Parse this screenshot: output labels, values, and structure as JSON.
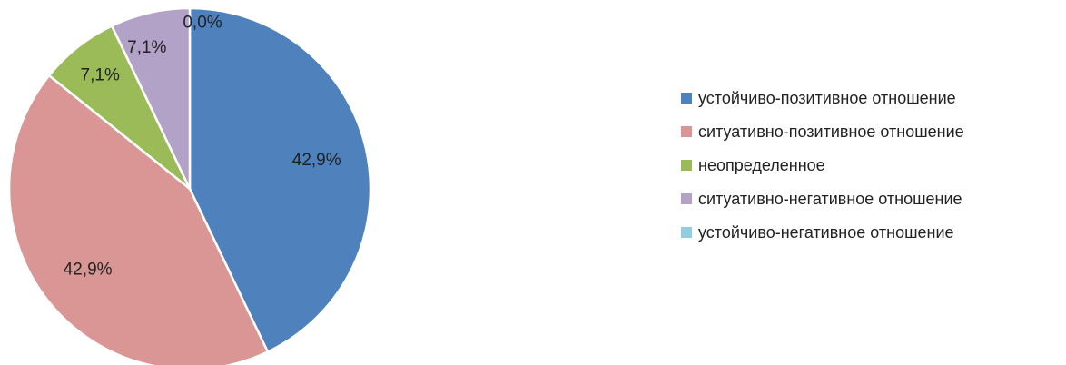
{
  "chart_data": {
    "type": "pie",
    "title": "",
    "legend_position": "right",
    "slices": [
      {
        "label": "устойчиво-позитивное отношение",
        "value": 42.9,
        "display": "42,9%",
        "color": "#4F81BD"
      },
      {
        "label": "ситуативно-позитивное отношение",
        "value": 42.9,
        "display": "42,9%",
        "color": "#D99694"
      },
      {
        "label": "неопределенное",
        "value": 7.1,
        "display": "7,1%",
        "color": "#9BBB59"
      },
      {
        "label": "ситуативно-негативное отношение",
        "value": 7.1,
        "display": "7,1%",
        "color": "#B3A2C7"
      },
      {
        "label": "устойчиво-негативное отношение",
        "value": 0.0,
        "display": "0,0%",
        "color": "#93CDDD"
      }
    ]
  }
}
